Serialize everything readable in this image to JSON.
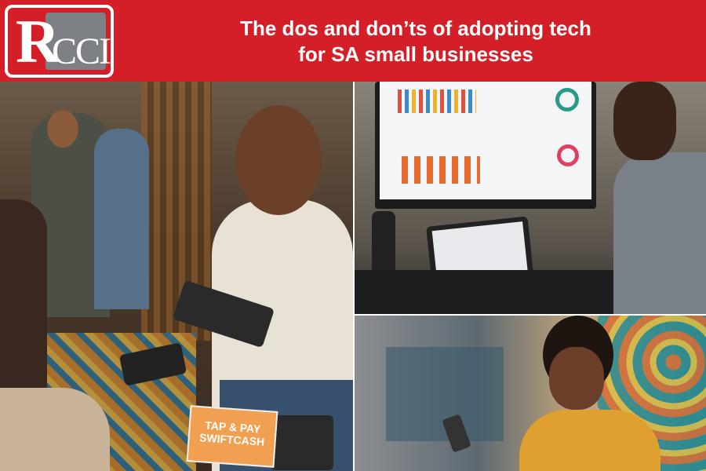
{
  "header": {
    "logo_text": "RCCI",
    "title_line1": "The dos and don’ts of adopting tech",
    "title_line2": "for SA small businesses",
    "brand_color": "#d41f28"
  },
  "photos": {
    "market": {
      "sign_line1": "TAP & PAY",
      "sign_line2": "SWIFTCASH"
    },
    "dashboard": {},
    "phone": {}
  }
}
